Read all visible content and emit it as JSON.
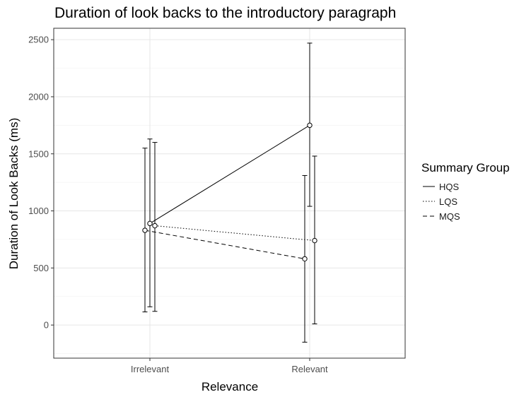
{
  "chart_data": {
    "type": "line",
    "title": "Duration of look backs to the introductory paragraph",
    "xlabel": "Relevance",
    "ylabel": "Duration of Look Backs (ms)",
    "categories": [
      "Irrelevant",
      "Relevant"
    ],
    "y_ticks": [
      "0",
      "500",
      "1000",
      "1500",
      "2000",
      "2500"
    ],
    "ylim": [
      -290,
      2600
    ],
    "grid": true,
    "legend": {
      "title": "Summary Group",
      "position": "right"
    },
    "error_bars": true,
    "series": [
      {
        "name": "HQS",
        "dash": "solid",
        "values": [
          890,
          1750
        ],
        "lower": [
          160,
          1040
        ],
        "upper": [
          1630,
          2470
        ]
      },
      {
        "name": "LQS",
        "dash": "dotted",
        "values": [
          870,
          740
        ],
        "lower": [
          120,
          10
        ],
        "upper": [
          1600,
          1480
        ]
      },
      {
        "name": "MQS",
        "dash": "dashed",
        "values": [
          830,
          580
        ],
        "lower": [
          115,
          -150
        ],
        "upper": [
          1550,
          1310
        ]
      }
    ]
  }
}
